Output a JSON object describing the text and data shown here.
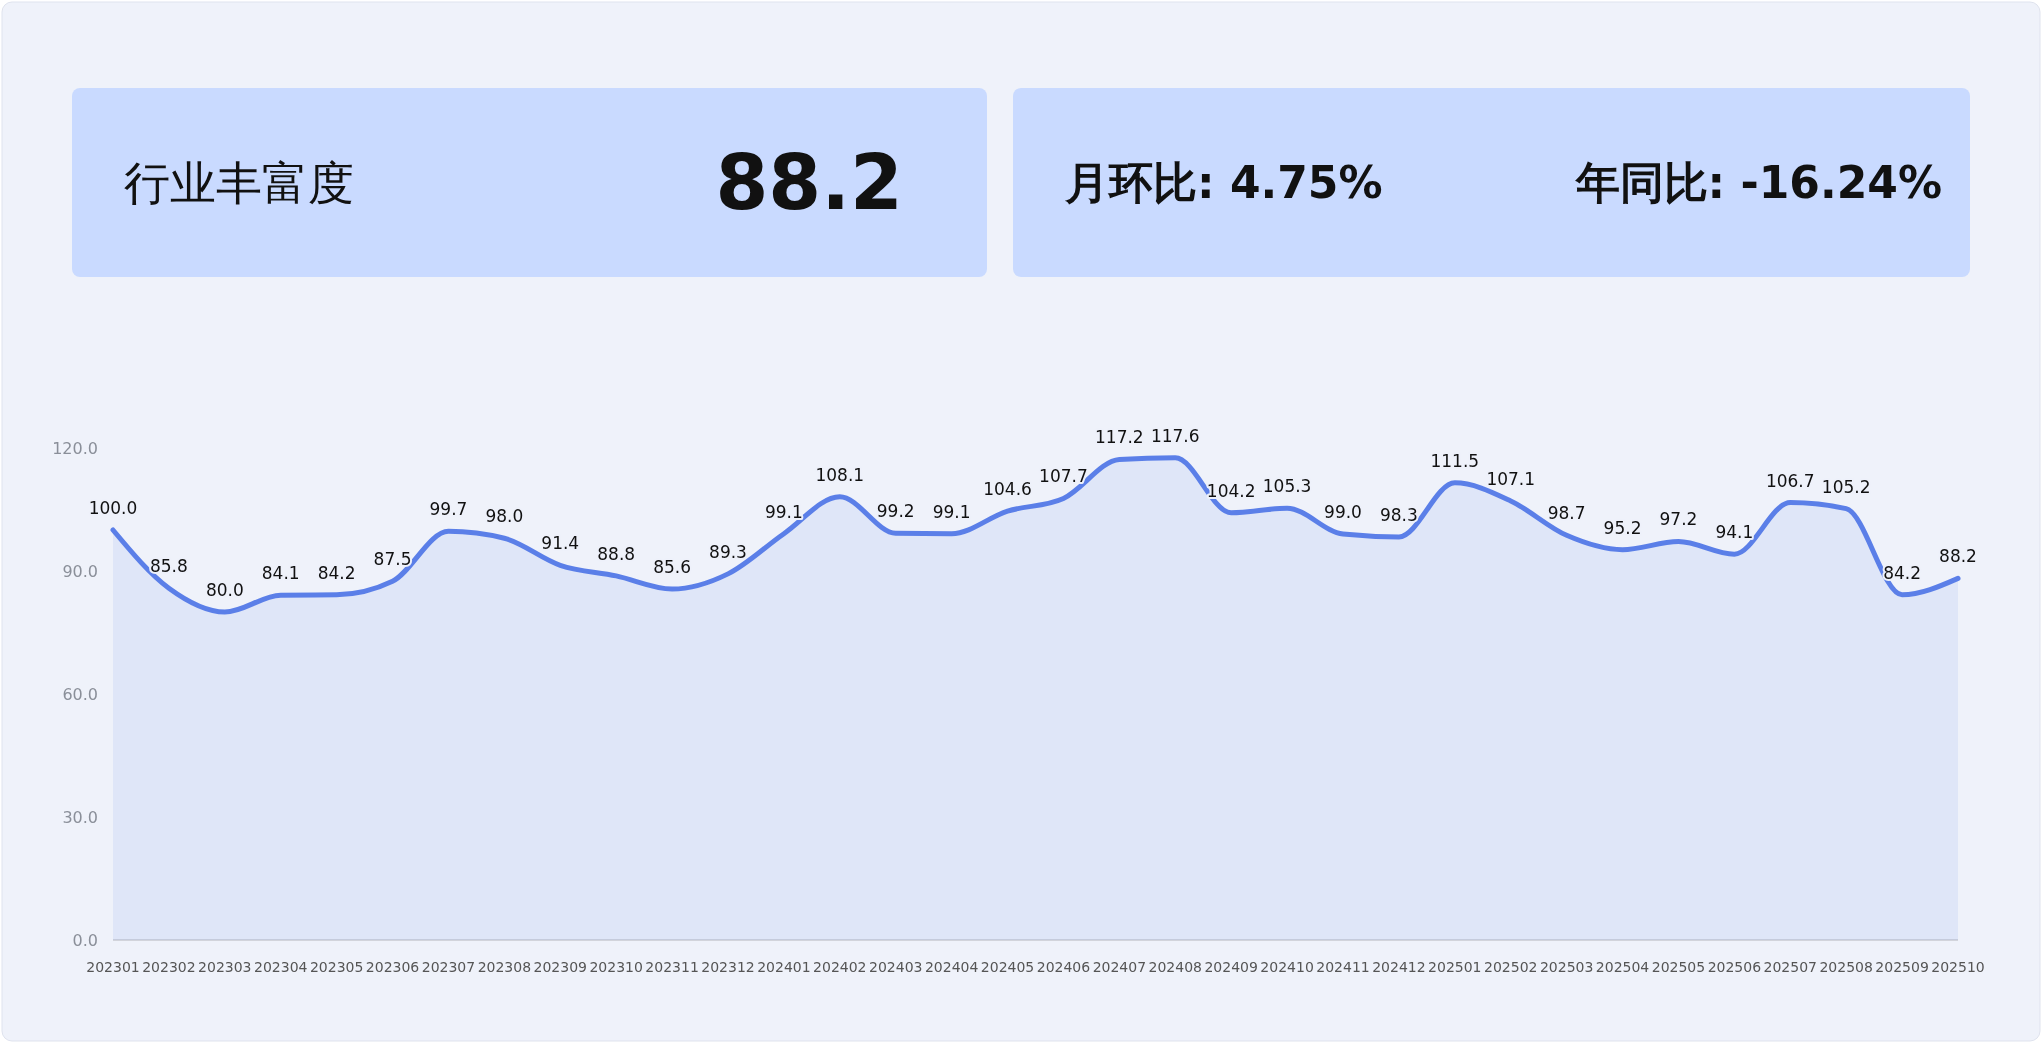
{
  "chart_data": [
    {
      "type": "other",
      "title": "行业丰富度",
      "annotations": [
        "88.2"
      ]
    },
    {
      "type": "other",
      "annotations": [
        "月环比: 4.75%",
        "年同比: -16.24%"
      ]
    },
    {
      "type": "area",
      "categories": [
        "202301",
        "202302",
        "202303",
        "202304",
        "202305",
        "202306",
        "202307",
        "202308",
        "202309",
        "202310",
        "202311",
        "202312",
        "202401",
        "202402",
        "202403",
        "202404",
        "202405",
        "202406",
        "202407",
        "202408",
        "202409",
        "202410",
        "202411",
        "202412",
        "202501",
        "202502",
        "202503",
        "202504",
        "202505",
        "202506",
        "202507",
        "202508",
        "202509",
        "202510"
      ],
      "series": [
        {
          "color": "#5b7fe8",
          "values": [
            100,
            85.8,
            80,
            84.1,
            84.2,
            87.5,
            99.7,
            98,
            91.4,
            88.8,
            85.6,
            89.3,
            99.1,
            108.1,
            99.2,
            99.1,
            104.6,
            107.7,
            117.2,
            117.6,
            104.2,
            105.3,
            99,
            98.3,
            111.5,
            107.1,
            98.7,
            95.2,
            97.2,
            94.1,
            106.7,
            105.2,
            84.2,
            88.2
          ],
          "value_labels": [
            "100.0",
            "85.8",
            "80.0",
            "84.1",
            "84.2",
            "87.5",
            "99.7",
            "98.0",
            "91.4",
            "88.8",
            "85.6",
            "89.3",
            "99.1",
            "108.1",
            "99.2",
            "99.1",
            "104.6",
            "107.7",
            "117.2",
            "117.6",
            "104.2",
            "105.3",
            "99.0",
            "98.3",
            "111.5",
            "107.1",
            "98.7",
            "95.2",
            "97.2",
            "94.1",
            "106.7",
            "105.2",
            "84.2",
            "88.2"
          ]
        }
      ],
      "ylim": [
        0,
        120
      ],
      "yticks": [
        {
          "value": 0,
          "label": "0.0"
        },
        {
          "value": 30,
          "label": "30.0"
        },
        {
          "value": 60,
          "label": "60.0"
        },
        {
          "value": 90,
          "label": "90.0"
        },
        {
          "value": 120,
          "label": "120.0"
        }
      ],
      "grid": false
    }
  ]
}
